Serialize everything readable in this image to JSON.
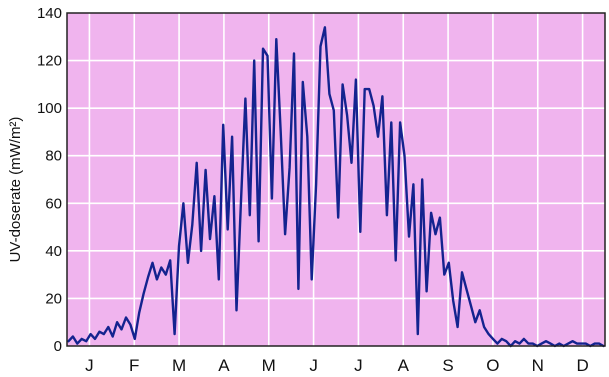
{
  "chart_data": {
    "type": "line",
    "xlabel": "",
    "ylabel": "UV-doserate (mW/m²)",
    "xlim": [
      0,
      365
    ],
    "ylim": [
      0,
      140
    ],
    "yticks": [
      0,
      20,
      40,
      60,
      80,
      100,
      120,
      140
    ],
    "month_labels": [
      "J",
      "F",
      "M",
      "A",
      "M",
      "J",
      "J",
      "A",
      "S",
      "O",
      "N",
      "D"
    ],
    "grid": true,
    "legend": "none",
    "colors": {
      "plot_background": "#f0b4ee",
      "grid": "#ffffff",
      "line": "#14238f"
    },
    "series": [
      {
        "x": [
          1,
          4,
          7,
          10,
          13,
          16,
          19,
          22,
          25,
          28,
          31,
          34,
          37,
          40,
          43,
          46,
          49,
          52,
          55,
          58,
          61,
          64,
          67,
          70,
          73,
          76,
          79,
          82,
          85,
          88,
          91,
          94,
          97,
          100,
          103,
          106,
          109,
          112,
          115,
          118,
          121,
          124,
          127,
          130,
          133,
          136,
          139,
          142,
          145,
          148,
          151,
          154,
          157,
          160,
          163,
          166,
          169,
          172,
          175,
          178,
          181,
          184,
          187,
          190,
          193,
          196,
          199,
          202,
          205,
          208,
          211,
          214,
          217,
          220,
          223,
          226,
          229,
          232,
          235,
          238,
          241,
          244,
          247,
          250,
          253,
          256,
          259,
          262,
          265,
          268,
          271,
          274,
          277,
          280,
          283,
          286,
          289,
          292,
          295,
          298,
          301,
          304,
          307,
          310,
          313,
          316,
          319,
          322,
          325,
          328,
          331,
          334,
          337,
          340,
          343,
          346,
          349,
          352,
          355,
          358,
          361,
          364
        ],
        "y": [
          2,
          4,
          1,
          3,
          2,
          5,
          3,
          6,
          5,
          8,
          4,
          10,
          7,
          12,
          9,
          3,
          14,
          22,
          29,
          35,
          28,
          33,
          30,
          36,
          5,
          42,
          60,
          35,
          51,
          77,
          40,
          74,
          45,
          63,
          28,
          93,
          49,
          88,
          15,
          60,
          104,
          55,
          120,
          44,
          125,
          122,
          62,
          129,
          90,
          47,
          75,
          123,
          24,
          111,
          88,
          28,
          68,
          126,
          134,
          106,
          99,
          54,
          110,
          97,
          77,
          112,
          48,
          108,
          108,
          101,
          88,
          105,
          55,
          94,
          36,
          94,
          80,
          46,
          68,
          5,
          70,
          23,
          56,
          47,
          54,
          30,
          35,
          19,
          8,
          31,
          24,
          17,
          10,
          15,
          8,
          5,
          3,
          1,
          3,
          2,
          0,
          2,
          1,
          3,
          1,
          1,
          0,
          1,
          2,
          1,
          0,
          1,
          0,
          1,
          2,
          1,
          1,
          1,
          0,
          1,
          1,
          0
        ]
      }
    ]
  }
}
